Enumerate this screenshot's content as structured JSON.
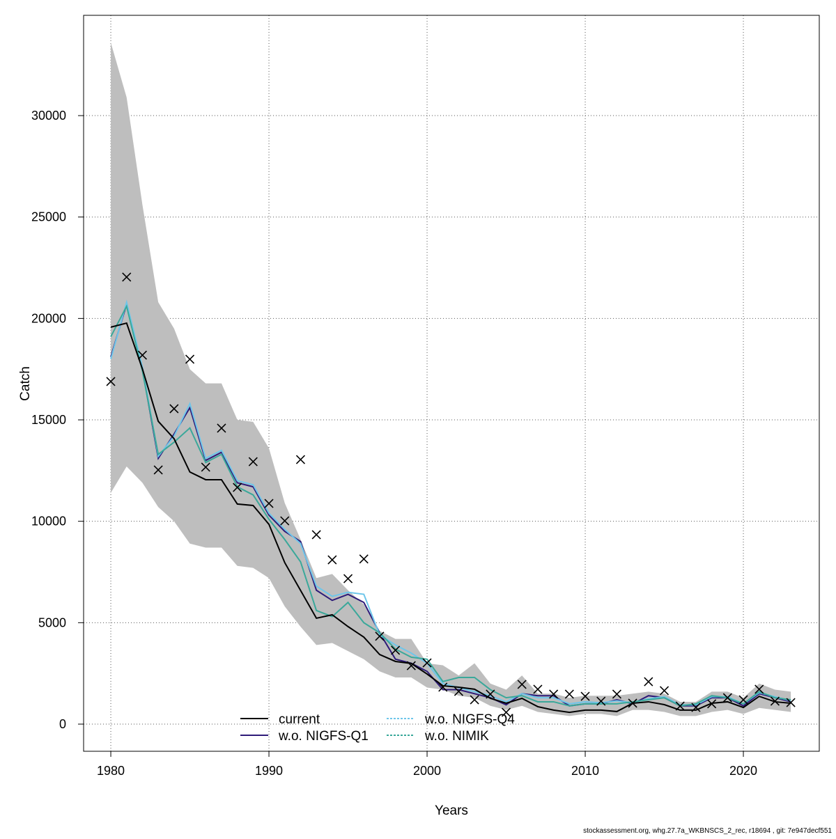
{
  "chart_data": {
    "type": "line",
    "x_label": "Years",
    "y_label": "Catch",
    "footer": "stockassessment.org, whg.27.7a_WKBNSCS_2_rec, r18694 , git: 7e947decf551",
    "x": [
      1980,
      1981,
      1982,
      1983,
      1984,
      1985,
      1986,
      1987,
      1988,
      1989,
      1990,
      1991,
      1992,
      1993,
      1994,
      1995,
      1996,
      1997,
      1998,
      1999,
      2000,
      2001,
      2002,
      2003,
      2004,
      2005,
      2006,
      2007,
      2008,
      2009,
      2010,
      2011,
      2012,
      2013,
      2014,
      2015,
      2016,
      2017,
      2018,
      2019,
      2020,
      2021,
      2022,
      2023
    ],
    "xlim": [
      1978.28,
      2024.8
    ],
    "ylim": [
      -1339,
      34945
    ],
    "xticks": [
      1980,
      1990,
      2000,
      2010,
      2020
    ],
    "yticks": [
      0,
      5000,
      10000,
      15000,
      20000,
      25000,
      30000
    ],
    "grid": true,
    "band_color": "#bebebe",
    "ci_upper": [
      33600,
      30900,
      25600,
      20800,
      19500,
      17500,
      16800,
      16800,
      15000,
      14900,
      13600,
      10900,
      9100,
      7200,
      7400,
      6600,
      5900,
      4600,
      4200,
      4200,
      3000,
      2900,
      2400,
      3000,
      2000,
      1700,
      2400,
      1500,
      1500,
      1300,
      1400,
      1400,
      1400,
      1500,
      1600,
      1500,
      1100,
      1100,
      1600,
      1600,
      1300,
      2000,
      1700,
      1600
    ],
    "ci_lower": [
      11400,
      12700,
      11900,
      10700,
      10000,
      8900,
      8700,
      8700,
      7800,
      7700,
      7200,
      5800,
      4800,
      3900,
      4000,
      3600,
      3200,
      2600,
      2300,
      2300,
      1800,
      1700,
      1400,
      1300,
      900,
      700,
      900,
      600,
      500,
      400,
      500,
      500,
      400,
      700,
      700,
      600,
      400,
      400,
      600,
      700,
      500,
      800,
      700,
      600
    ],
    "observed": [
      16890,
      22040,
      18190,
      12530,
      15550,
      17990,
      12670,
      14590,
      11670,
      12940,
      10880,
      10020,
      13040,
      9340,
      8100,
      7170,
      8140,
      4330,
      3640,
      2880,
      3020,
      1820,
      1610,
      1200,
      1480,
      580,
      1960,
      1720,
      1480,
      1480,
      1370,
      1130,
      1480,
      1030,
      2090,
      1650,
      890,
      820,
      1000,
      1300,
      1200,
      1720,
      1130,
      1060
    ],
    "series": [
      {
        "name": "current",
        "color": "#000000",
        "values": [
          19570,
          19770,
          17510,
          14930,
          14070,
          12430,
          12050,
          12050,
          10850,
          10780,
          9850,
          7960,
          6590,
          5220,
          5390,
          4810,
          4290,
          3430,
          3090,
          2990,
          2470,
          1890,
          1820,
          1720,
          1270,
          1030,
          1270,
          860,
          690,
          580,
          690,
          690,
          620,
          1030,
          1100,
          960,
          690,
          690,
          1030,
          1100,
          820,
          1370,
          1100,
          1030
        ]
      },
      {
        "name": "w.o. NIGFS-Q1",
        "color": "#2d1a78",
        "values": [
          18100,
          20700,
          17500,
          13100,
          14300,
          15600,
          13000,
          13400,
          11900,
          11700,
          10300,
          9500,
          9000,
          6600,
          6100,
          6400,
          6000,
          4500,
          3200,
          3000,
          2600,
          1700,
          1700,
          1500,
          1300,
          950,
          1500,
          1400,
          1400,
          900,
          1000,
          1000,
          1200,
          1000,
          1400,
          1300,
          900,
          900,
          1300,
          1300,
          900,
          1500,
          1300,
          1100
        ]
      },
      {
        "name": "w.o. NIGFS-Q4",
        "color": "#6ec6ea",
        "values": [
          18000,
          20800,
          17600,
          13200,
          14200,
          15800,
          13100,
          13500,
          12000,
          11800,
          10400,
          9600,
          8900,
          6800,
          6300,
          6500,
          6400,
          4400,
          3900,
          3500,
          3000,
          2000,
          1800,
          1600,
          1400,
          1100,
          1500,
          1300,
          1300,
          1000,
          1100,
          1050,
          1150,
          1050,
          1250,
          1350,
          950,
          950,
          1350,
          1350,
          1000,
          1550,
          1350,
          1150
        ]
      },
      {
        "name": "w.o. NIMIK",
        "color": "#3aa89a",
        "values": [
          19100,
          20600,
          17400,
          13300,
          13900,
          14600,
          12900,
          13300,
          11700,
          11300,
          10100,
          9100,
          8000,
          5600,
          5300,
          6000,
          5000,
          4500,
          3700,
          3300,
          3200,
          2100,
          2300,
          2300,
          1700,
          1300,
          1400,
          1100,
          1100,
          900,
          1000,
          1000,
          1000,
          1100,
          1200,
          1300,
          900,
          1000,
          1400,
          1300,
          1000,
          1600,
          1300,
          1200
        ]
      }
    ]
  }
}
